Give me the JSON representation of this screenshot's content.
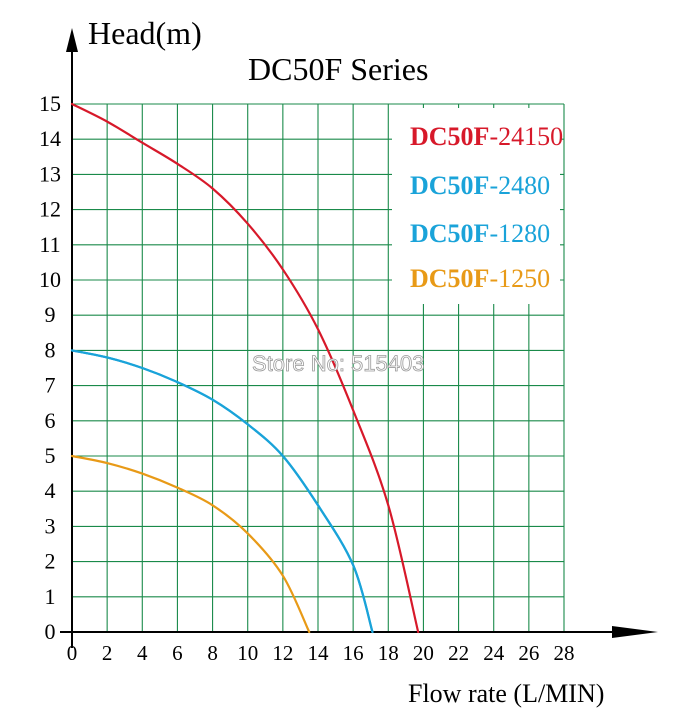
{
  "chart_data": {
    "type": "line",
    "title": "DC50F Series",
    "ylabel": "Head(m)",
    "xlabel": "Flow rate (L/MIN)",
    "xlim": [
      0,
      28
    ],
    "ylim": [
      0,
      15
    ],
    "x_ticks": [
      "0",
      "2",
      "4",
      "6",
      "8",
      "10",
      "12",
      "14",
      "16",
      "18",
      "20",
      "22",
      "24",
      "26",
      "28"
    ],
    "y_ticks": [
      "0",
      "1",
      "2",
      "3",
      "4",
      "5",
      "6",
      "7",
      "8",
      "9",
      "10",
      "11",
      "12",
      "13",
      "14",
      "15"
    ],
    "grid": true,
    "legend_position": "top-right",
    "series": [
      {
        "name_prefix": "DC50F",
        "name_suffix": "-24150",
        "color": "#d7192a",
        "points": [
          [
            0,
            15
          ],
          [
            2,
            14.5
          ],
          [
            4,
            13.9
          ],
          [
            6,
            13.3
          ],
          [
            8,
            12.6
          ],
          [
            10,
            11.6
          ],
          [
            12,
            10.3
          ],
          [
            14,
            8.6
          ],
          [
            16,
            6.3
          ],
          [
            18,
            3.6
          ],
          [
            19.7,
            0
          ]
        ]
      },
      {
        "name_prefix": "DC50F",
        "name_suffix": "-2480",
        "color": "#1aa3d9",
        "points": [
          [
            0,
            8
          ],
          [
            2,
            7.8
          ],
          [
            4,
            7.5
          ],
          [
            6,
            7.1
          ],
          [
            8,
            6.6
          ],
          [
            10,
            5.9
          ],
          [
            12,
            5
          ],
          [
            14,
            3.6
          ],
          [
            16,
            1.9
          ],
          [
            17.1,
            0
          ]
        ]
      },
      {
        "name_prefix": "DC50F",
        "name_suffix": "-1280",
        "color": "#1aa3d9",
        "points": [
          [
            0,
            8
          ],
          [
            2,
            7.8
          ],
          [
            4,
            7.5
          ],
          [
            6,
            7.1
          ],
          [
            8,
            6.6
          ],
          [
            10,
            5.9
          ],
          [
            12,
            5
          ],
          [
            14,
            3.6
          ],
          [
            16,
            1.9
          ],
          [
            17.1,
            0
          ]
        ]
      },
      {
        "name_prefix": "DC50F",
        "name_suffix": "-1250",
        "color": "#e89a17",
        "points": [
          [
            0,
            5
          ],
          [
            2,
            4.8
          ],
          [
            4,
            4.5
          ],
          [
            6,
            4.1
          ],
          [
            8,
            3.6
          ],
          [
            10,
            2.8
          ],
          [
            12,
            1.6
          ],
          [
            13.5,
            0
          ]
        ]
      }
    ]
  },
  "watermark": "Store No: 515403"
}
